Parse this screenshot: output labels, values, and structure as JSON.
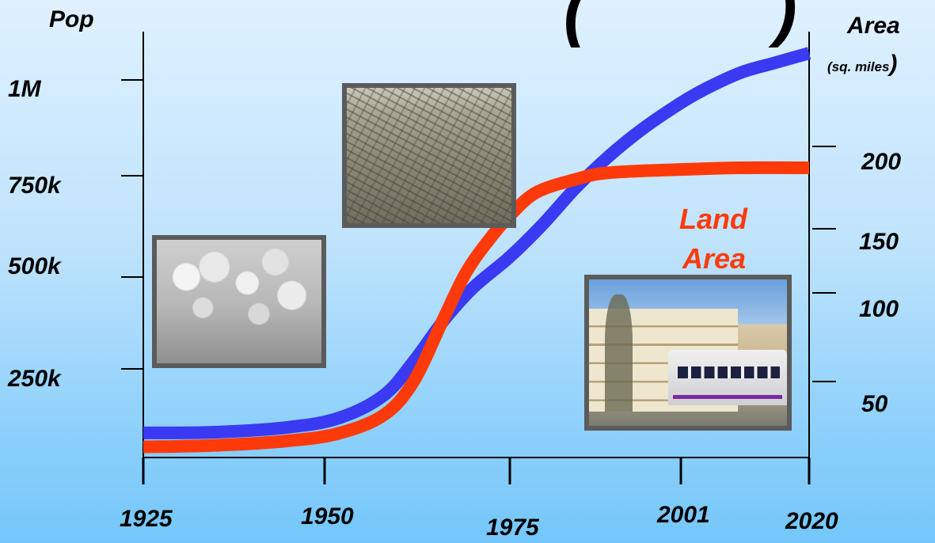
{
  "chart_data": {
    "type": "line",
    "x_ticks": [
      1925,
      1950,
      1975,
      2001,
      2020
    ],
    "left_axis": {
      "title": "Pop",
      "tick_labels": [
        "250k",
        "500k",
        "750k",
        "1M"
      ],
      "tick_values": [
        250000,
        500000,
        750000,
        1000000
      ],
      "range": [
        0,
        1100000
      ]
    },
    "right_axis": {
      "title": "Area",
      "subtitle": "(sq. miles",
      "paren_close": ")",
      "tick_labels": [
        "50",
        "100",
        "150",
        "200"
      ],
      "tick_values": [
        50,
        100,
        150,
        200
      ],
      "range": [
        0,
        240
      ]
    },
    "series": [
      {
        "axis": "left",
        "color": "#3a3af2",
        "x": [
          1925,
          1935,
          1945,
          1952,
          1958,
          1962,
          1966,
          1970,
          1975,
          1980,
          1985,
          1990,
          1995,
          2001,
          2005,
          2010,
          2015,
          2020
        ],
        "values": [
          80000,
          82000,
          95000,
          120000,
          180000,
          270000,
          380000,
          470000,
          550000,
          630000,
          720000,
          800000,
          870000,
          940000,
          980000,
          1020000,
          1045000,
          1070000
        ]
      },
      {
        "name": "Land Area",
        "axis": "right",
        "color": "#ff3a0a",
        "x": [
          1925,
          1935,
          1945,
          1952,
          1958,
          1962,
          1966,
          1969,
          1972,
          1975,
          1979,
          1985,
          1990,
          2001,
          2010,
          2020
        ],
        "values": [
          7,
          8,
          11,
          16,
          28,
          50,
          85,
          115,
          140,
          158,
          172,
          180,
          184,
          186,
          187,
          187
        ]
      }
    ],
    "annotation": {
      "text_line1": "Land",
      "text_line2": "Area",
      "color": "#ff3a0a"
    },
    "grid": false,
    "legend": "none"
  },
  "photos": [
    {
      "name": "blossom-orchard-photo"
    },
    {
      "name": "aerial-suburb-photo"
    },
    {
      "name": "light-rail-photo"
    }
  ],
  "header_partial": {
    "left_paren": "(",
    "right_paren": ")"
  }
}
